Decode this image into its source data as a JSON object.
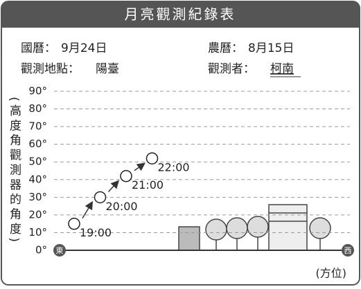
{
  "header": {
    "title": "月亮觀測紀錄表",
    "solar_date": {
      "label": "國曆：",
      "value": "9月24日"
    },
    "lunar_date": {
      "label": "農曆：",
      "value": "8月15日"
    },
    "location": {
      "label": "觀測地點：",
      "value": "陽臺"
    },
    "observer": {
      "label": "觀測者：",
      "value": "柯南"
    }
  },
  "chart_data": {
    "type": "scatter",
    "y_label": "(高度角觀測器的角度)",
    "x_start_label": "東",
    "x_end_label": "西",
    "x_label": "(方位)",
    "categories": [
      "19:00",
      "20:00",
      "21:00",
      "22:00"
    ],
    "values": [
      15,
      30,
      42,
      52
    ],
    "ylim": [
      0,
      90
    ],
    "yticks": [
      {
        "value": 0,
        "label": "0°"
      },
      {
        "value": 10,
        "label": "10°"
      },
      {
        "value": 20,
        "label": "20°"
      },
      {
        "value": 30,
        "label": "30°"
      },
      {
        "value": 40,
        "label": "40°"
      },
      {
        "value": 50,
        "label": "50°"
      },
      {
        "value": 60,
        "label": "60°"
      },
      {
        "value": 70,
        "label": "70°"
      },
      {
        "value": 80,
        "label": "80°"
      },
      {
        "value": 90,
        "label": "90°"
      }
    ],
    "grid": true
  }
}
